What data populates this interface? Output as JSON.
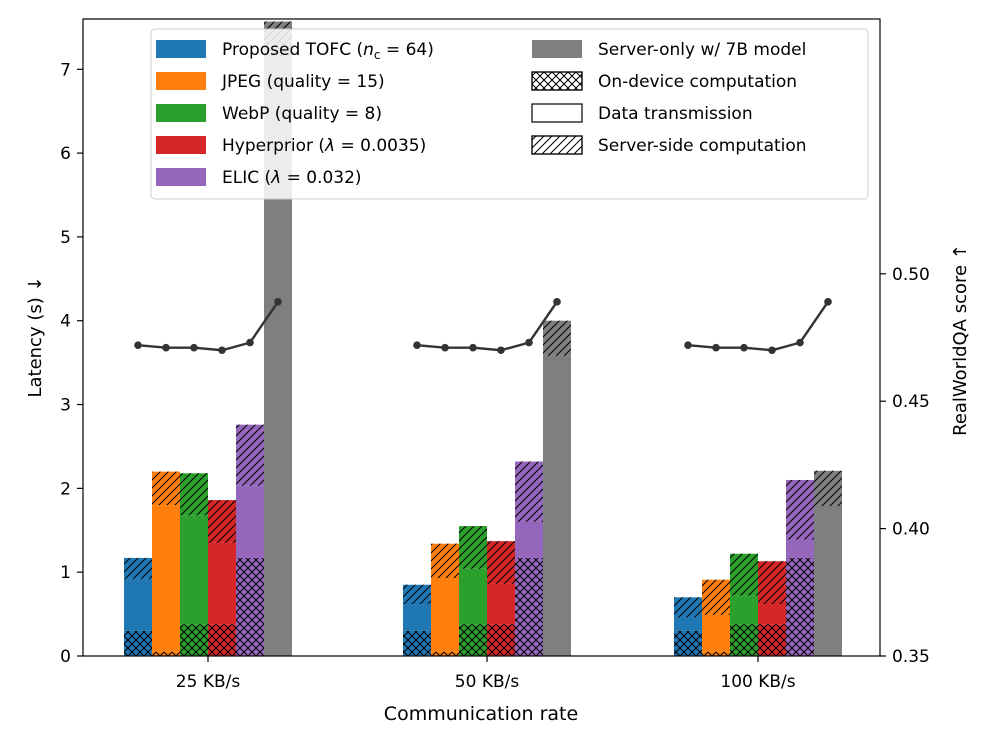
{
  "chart_data": {
    "type": "bar",
    "xlabel": "Communication rate",
    "ylabel_left": "Latency (s) ↓",
    "ylabel_right": "RealWorldQA score ↑",
    "categories": [
      "25 KB/s",
      "50 KB/s",
      "100 KB/s"
    ],
    "left_axis": {
      "ylim": [
        0,
        7.6
      ],
      "ticks": [
        "0",
        "1",
        "2",
        "3",
        "4",
        "5",
        "6",
        "7"
      ]
    },
    "right_axis": {
      "ylim": [
        0.35,
        0.6
      ],
      "ticks": [
        "0.35",
        "0.40",
        "0.45",
        "0.50"
      ]
    },
    "legend_placement": "top",
    "legend": {
      "methods": [
        {
          "key": "tofc",
          "prefix": "Proposed TOFC (",
          "var": "n",
          "sub": "c",
          "suffix": " = 64)",
          "color": "#1f77b4"
        },
        {
          "key": "jpeg",
          "text": "JPEG (quality = 15)",
          "color": "#ff7f0e"
        },
        {
          "key": "webp",
          "text": "WebP (quality = 8)",
          "color": "#2ca02c"
        },
        {
          "key": "hyper",
          "prefix": "Hyperprior (",
          "var": "λ",
          "suffix": " = 0.0035)",
          "color": "#d62728"
        },
        {
          "key": "elic",
          "prefix": "ELIC (",
          "var": "λ",
          "suffix": " = 0.032)",
          "color": "#9467bd"
        },
        {
          "key": "server",
          "text": "Server-only w/ 7B model",
          "color": "#7f7f7f"
        }
      ],
      "components": [
        {
          "key": "ondevice",
          "text": "On-device computation",
          "hatch": "crosshatch"
        },
        {
          "key": "transmission",
          "text": "Data transmission",
          "hatch": "none"
        },
        {
          "key": "serverside",
          "text": "Server-side computation",
          "hatch": "diagonal"
        }
      ]
    },
    "series": [
      {
        "name": "Proposed TOFC (n_c = 64)",
        "color": "#1f77b4",
        "on_device": [
          0.3,
          0.3,
          0.3
        ],
        "transmission": [
          0.62,
          0.32,
          0.16
        ],
        "server_side": [
          0.25,
          0.23,
          0.24
        ]
      },
      {
        "name": "JPEG (quality = 15)",
        "color": "#ff7f0e",
        "on_device": [
          0.05,
          0.05,
          0.05
        ],
        "transmission": [
          1.75,
          0.88,
          0.44
        ],
        "server_side": [
          0.4,
          0.41,
          0.42
        ]
      },
      {
        "name": "WebP (quality = 8)",
        "color": "#2ca02c",
        "on_device": [
          0.38,
          0.38,
          0.38
        ],
        "transmission": [
          1.3,
          0.66,
          0.34
        ],
        "server_side": [
          0.5,
          0.51,
          0.5
        ]
      },
      {
        "name": "Hyperprior (λ = 0.0035)",
        "color": "#d62728",
        "on_device": [
          0.38,
          0.38,
          0.38
        ],
        "transmission": [
          0.97,
          0.48,
          0.24
        ],
        "server_side": [
          0.51,
          0.51,
          0.51
        ]
      },
      {
        "name": "ELIC (λ = 0.032)",
        "color": "#9467bd",
        "on_device": [
          1.17,
          1.17,
          1.17
        ],
        "transmission": [
          0.86,
          0.43,
          0.22
        ],
        "server_side": [
          0.73,
          0.72,
          0.71
        ]
      },
      {
        "name": "Server-only w/ 7B model",
        "color": "#7f7f7f",
        "on_device": [
          0,
          0,
          0
        ],
        "transmission": [
          7.15,
          3.58,
          1.79
        ],
        "server_side": [
          0.42,
          0.42,
          0.42
        ]
      }
    ],
    "score_series": {
      "name": "RealWorldQA score",
      "color": "#333333",
      "values": [
        0.472,
        0.471,
        0.471,
        0.47,
        0.473,
        0.489
      ]
    }
  }
}
